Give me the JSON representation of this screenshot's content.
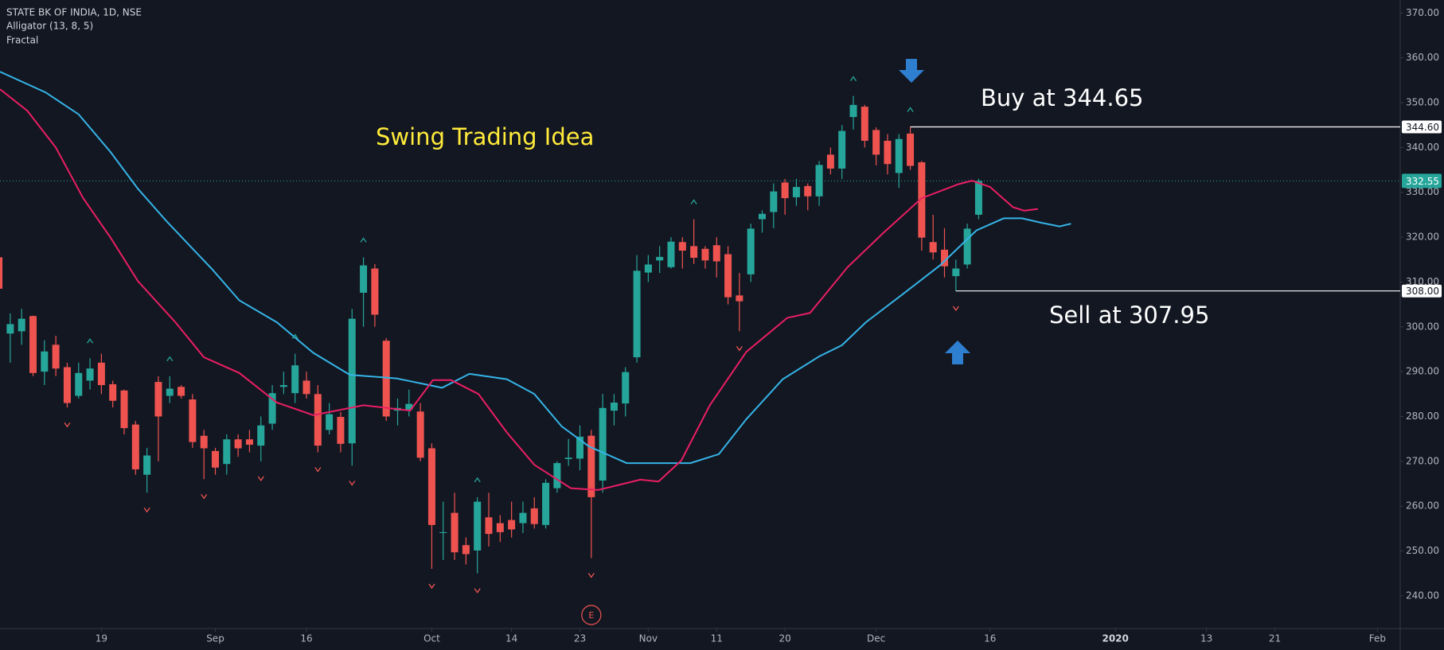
{
  "chart_data": {
    "type": "candlestick",
    "title": "STATE BK OF INDIA, 1D, NSE",
    "indicators": [
      "Alligator (13, 8, 5)",
      "Fractal"
    ],
    "annotations": [
      "Swing Trading Idea",
      "Buy at 344.65",
      "Sell at 307.95"
    ],
    "x": [
      0,
      1,
      2,
      3,
      4,
      5,
      6,
      7,
      8,
      9,
      10,
      11,
      12,
      13,
      14,
      15,
      16,
      17,
      18,
      19,
      20,
      21,
      22,
      23,
      24,
      25,
      26,
      27,
      28,
      29,
      30,
      31,
      32,
      33,
      34,
      35,
      36,
      37,
      38,
      39,
      40,
      41,
      42,
      43,
      44,
      45,
      46,
      47,
      48,
      49,
      50,
      51,
      52,
      53,
      54,
      55,
      56,
      57,
      58,
      59,
      60,
      61,
      62,
      63,
      64,
      65,
      66,
      67,
      68,
      69,
      70,
      71,
      72,
      73,
      74,
      75,
      76,
      77,
      78,
      79,
      80,
      81,
      82,
      83,
      84,
      85,
      86
    ],
    "open": [
      315.5,
      298.5,
      299,
      302.4,
      290,
      296,
      291,
      284.6,
      288,
      292,
      287.2,
      285.8,
      278.2,
      267,
      287.7,
      284.6,
      286.6,
      283.8,
      275.7,
      272.3,
      269.4,
      274.9,
      274.9,
      273.5,
      278.4,
      286.6,
      285.2,
      288,
      285,
      277,
      279.9,
      274,
      307.6,
      313,
      296.9,
      281.3,
      281.5,
      281.1,
      272.9,
      254,
      258.5,
      251.3,
      250.1,
      257.5,
      256.2,
      256.9,
      256.2,
      259.5,
      255.8,
      264,
      270.5,
      270.6,
      275.7,
      265.7,
      281.3,
      282.9,
      293.2,
      312.1,
      314.8,
      313.3,
      318.9,
      318,
      317.4,
      318.2,
      316.2,
      307,
      311.7,
      324,
      325.6,
      332.2,
      328.9,
      331.4,
      329.1,
      338.4,
      335.3,
      346.8,
      349.1,
      343.9,
      341.5,
      334.3,
      343.1,
      336.7,
      318.9,
      317.2,
      311.3,
      313.9,
      325
    ],
    "high": [
      316,
      303,
      304,
      302.5,
      297,
      298,
      292,
      292,
      293,
      294,
      288,
      286,
      279,
      273,
      289,
      289,
      287,
      285,
      277,
      273,
      276,
      276,
      277,
      280,
      287,
      290,
      294,
      290,
      287,
      283,
      281,
      304,
      315.5,
      314,
      297.5,
      284,
      286,
      283,
      274,
      261,
      263,
      253,
      262,
      263,
      258,
      261,
      261,
      262,
      266,
      270,
      275,
      278,
      277,
      285,
      285,
      291,
      316,
      316,
      318,
      320,
      320,
      324,
      318,
      320,
      318,
      312,
      323,
      326,
      332,
      333,
      333,
      332,
      337,
      340,
      345,
      351.5,
      349.5,
      344.5,
      343,
      343,
      344.6,
      337,
      325,
      322,
      315,
      323,
      333
    ],
    "low": [
      308,
      292,
      296,
      289,
      287,
      289,
      282,
      284,
      286,
      285,
      282,
      276,
      267,
      263,
      270,
      283,
      284,
      273,
      266,
      267,
      267,
      271,
      272,
      270,
      277,
      285,
      283,
      284,
      272,
      276,
      272,
      269,
      300,
      300,
      279,
      278,
      280,
      270,
      246,
      248,
      248,
      247,
      245,
      251,
      252,
      253,
      254,
      255,
      255,
      263,
      269,
      268,
      248.4,
      263,
      278,
      280,
      292,
      310,
      312,
      313,
      313,
      314,
      313,
      311,
      305,
      299,
      310,
      321,
      322,
      325,
      327,
      326,
      327,
      334,
      333,
      344,
      340,
      336,
      334,
      331,
      335,
      317,
      315,
      311,
      307.95,
      313,
      324
    ],
    "close": [
      308.5,
      300.6,
      301.8,
      289.7,
      294.5,
      290.7,
      283,
      289.7,
      290.7,
      287,
      283.5,
      277.4,
      268.2,
      271.3,
      280,
      286.2,
      284.6,
      274.3,
      272.9,
      268.6,
      274.9,
      272.9,
      273.7,
      278,
      285.2,
      287,
      291.4,
      285,
      273.5,
      280.5,
      273.9,
      301.8,
      313.7,
      302.7,
      280,
      281.9,
      282.8,
      270.8,
      255.8,
      254.2,
      249.7,
      249.3,
      261,
      253.8,
      254.2,
      254.8,
      258.5,
      256,
      265.2,
      269.6,
      270.8,
      275.5,
      262,
      281.9,
      283.1,
      289.9,
      312.5,
      313.9,
      315.6,
      319,
      317,
      315.4,
      314.8,
      314.6,
      306.6,
      305.7,
      321.9,
      325.2,
      330.2,
      328.7,
      331.2,
      329.1,
      336.1,
      335.3,
      343.7,
      349.5,
      341.5,
      338.4,
      336.3,
      341.9,
      335.9,
      319.9,
      316.6,
      313.5,
      313,
      321.9,
      332.55
    ],
    "up_color": "#26a69a",
    "down_color": "#ef5350",
    "lines": [
      {
        "color": "#35b3e6",
        "x": [
          0.1,
          4.1,
          7,
          9.8,
          12.2,
          14.7,
          18.7,
          21.1,
          24.4,
          27.6,
          30.8,
          34.9,
          38.9,
          41.3,
          44.6,
          47,
          49.4,
          51.8,
          55.1,
          58.3,
          60.7,
          63.2,
          65.6,
          68.8,
          72,
          74,
          76.1,
          79.3,
          82.6,
          85.8,
          88.2,
          89.8,
          91.5,
          93.1,
          94.1
        ],
        "values": [
          356.9,
          352.3,
          347.4,
          339,
          330.8,
          323.6,
          312.9,
          305.9,
          301,
          294.2,
          289.3,
          288.5,
          286.4,
          289.5,
          288.3,
          285,
          277.8,
          273.3,
          269.6,
          269.6,
          269.6,
          271.6,
          279.4,
          288.3,
          293.4,
          295.9,
          301,
          307.2,
          313.7,
          321.5,
          324.2,
          324.2,
          323.2,
          322.4,
          323
        ]
      },
      {
        "color": "#e91e63",
        "x": [
          0.1,
          2.5,
          5,
          7.4,
          9.8,
          12.2,
          15.5,
          18,
          21.1,
          24.4,
          27.6,
          32,
          36.1,
          38.1,
          39.7,
          42.1,
          44.6,
          47,
          50.2,
          52.6,
          56.3,
          57.9,
          59.9,
          62.4,
          65.6,
          69.2,
          71.2,
          74.5,
          77.7,
          81,
          84.2,
          85.4,
          87,
          89,
          90,
          91.2
        ],
        "values": [
          353,
          348.2,
          340,
          328.7,
          319.9,
          310.2,
          301,
          293.2,
          289.7,
          283.1,
          280.3,
          282.5,
          281.3,
          288.1,
          288.1,
          285,
          276.4,
          269.2,
          264,
          263.6,
          265.9,
          265.5,
          270.2,
          282.5,
          294.4,
          302,
          303.1,
          313.3,
          321.1,
          328.7,
          331.8,
          332.6,
          331.2,
          326.7,
          325.9,
          326.3
        ]
      }
    ],
    "fractals_up": [
      8,
      15,
      26,
      32,
      42,
      61,
      75,
      80
    ],
    "fractals_down": [
      6,
      13,
      18,
      23,
      28,
      31,
      38,
      42,
      52,
      65,
      84
    ],
    "events": [
      {
        "x": 52,
        "label": "E"
      }
    ],
    "levels": [
      {
        "value": 344.6,
        "label": "344.60",
        "x": 80
      },
      {
        "value": 308,
        "label": "308.00",
        "x": 84
      }
    ],
    "last_price": {
      "value": 332.55,
      "label": "332.55"
    },
    "xlim": [
      0.1,
      123
    ],
    "ylim": [
      232.7,
      372.9
    ],
    "xticks": [
      {
        "value": 9,
        "label": "19"
      },
      {
        "value": 19,
        "label": "Sep"
      },
      {
        "value": 27,
        "label": "16"
      },
      {
        "value": 38,
        "label": "Oct"
      },
      {
        "value": 45,
        "label": "14"
      },
      {
        "value": 51,
        "label": "23"
      },
      {
        "value": 57,
        "label": "Nov"
      },
      {
        "value": 63,
        "label": "11"
      },
      {
        "value": 69,
        "label": "20"
      },
      {
        "value": 77,
        "label": "Dec"
      },
      {
        "value": 87,
        "label": "16"
      },
      {
        "value": 98,
        "label": "2020"
      },
      {
        "value": 106,
        "label": "13"
      },
      {
        "value": 112,
        "label": "21"
      },
      {
        "value": 121,
        "label": "Feb"
      }
    ],
    "yticks": [
      {
        "value": 240,
        "label": "240.00"
      },
      {
        "value": 250,
        "label": "250.00"
      },
      {
        "value": 260,
        "label": "260.00"
      },
      {
        "value": 270,
        "label": "270.00"
      },
      {
        "value": 280,
        "label": "280.00"
      },
      {
        "value": 290,
        "label": "290.00"
      },
      {
        "value": 300,
        "label": "300.00"
      },
      {
        "value": 310,
        "label": "310.00"
      },
      {
        "value": 320,
        "label": "320.00"
      },
      {
        "value": 330,
        "label": "330.00"
      },
      {
        "value": 340,
        "label": "340.00"
      },
      {
        "value": 350,
        "label": "350.00"
      },
      {
        "value": 360,
        "label": "360.00"
      },
      {
        "value": 370,
        "label": "370.00"
      }
    ]
  }
}
